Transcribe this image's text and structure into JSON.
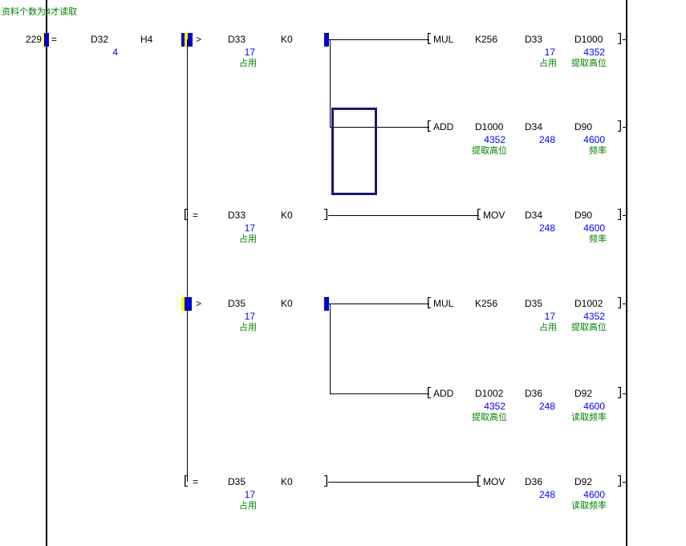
{
  "title_comment": "资料个数为4才读取",
  "step_number": "229",
  "colors": {
    "background": "#ffffff",
    "wire": "#000000",
    "monitor_value": "#0000ff",
    "device_comment": "#008000",
    "energized_bar": "#0000cd",
    "select_highlight": "#ffff00",
    "edit_cursor": "#191970"
  },
  "rail_contact": {
    "op": "=",
    "energized": true,
    "operands": [
      {
        "device": "D32",
        "value": "4"
      },
      {
        "device": "H4"
      }
    ]
  },
  "branches": [
    {
      "row": 0,
      "contact": {
        "op": ">",
        "energized": true,
        "operands": [
          {
            "device": "D33",
            "value": "17",
            "comment": "占用"
          },
          {
            "device": "K0"
          }
        ]
      },
      "instruction": {
        "mnemonic": "MUL",
        "operands": [
          {
            "device": "K256"
          },
          {
            "device": "D33",
            "value": "17",
            "comment": "占用"
          },
          {
            "device": "D1000",
            "value": "4352",
            "comment": "提取高位"
          }
        ]
      },
      "sub_instruction": {
        "row": 1,
        "mnemonic": "ADD",
        "operands": [
          {
            "device": "D1000",
            "value": "4352",
            "comment": "提取高位"
          },
          {
            "device": "D34",
            "value": "248"
          },
          {
            "device": "D90",
            "value": "4600",
            "comment": "频率"
          }
        ]
      }
    },
    {
      "row": 2,
      "contact": {
        "op": "=",
        "energized": false,
        "operands": [
          {
            "device": "D33",
            "value": "17",
            "comment": "占用"
          },
          {
            "device": "K0"
          }
        ]
      },
      "instruction": {
        "mnemonic": "MOV",
        "operands": [
          {
            "device": "D34",
            "value": "248"
          },
          {
            "device": "D90",
            "value": "4600",
            "comment": "频率"
          }
        ]
      }
    },
    {
      "row": 3,
      "contact": {
        "op": ">",
        "energized": true,
        "operands": [
          {
            "device": "D35",
            "value": "17",
            "comment": "占用"
          },
          {
            "device": "K0"
          }
        ]
      },
      "instruction": {
        "mnemonic": "MUL",
        "operands": [
          {
            "device": "K256"
          },
          {
            "device": "D35",
            "value": "17",
            "comment": "占用"
          },
          {
            "device": "D1002",
            "value": "4352",
            "comment": "提取高位"
          }
        ]
      },
      "sub_instruction": {
        "row": 4,
        "mnemonic": "ADD",
        "operands": [
          {
            "device": "D1002",
            "value": "4352",
            "comment": "提取高位"
          },
          {
            "device": "D36",
            "value": "248"
          },
          {
            "device": "D92",
            "value": "4600",
            "comment": "读取频率"
          }
        ]
      }
    },
    {
      "row": 5,
      "contact": {
        "op": "=",
        "energized": false,
        "operands": [
          {
            "device": "D35",
            "value": "17",
            "comment": "占用"
          },
          {
            "device": "K0"
          }
        ]
      },
      "instruction": {
        "mnemonic": "MOV",
        "operands": [
          {
            "device": "D36",
            "value": "248"
          },
          {
            "device": "D92",
            "value": "4600",
            "comment": "读取频率"
          }
        ]
      }
    }
  ],
  "cursor_cell": {
    "visible": true
  }
}
